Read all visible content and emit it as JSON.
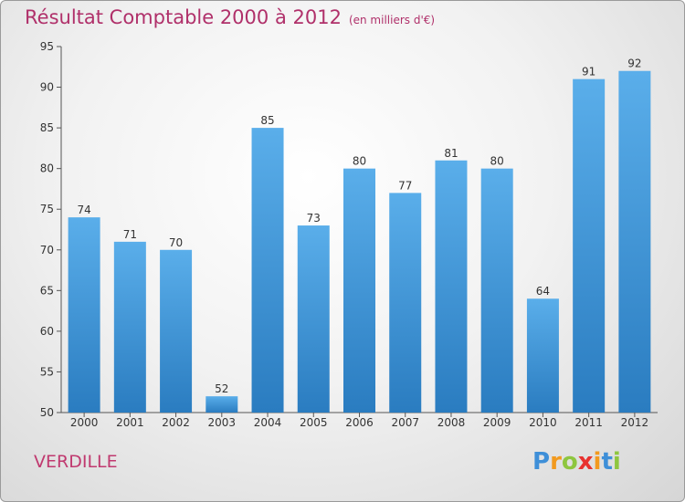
{
  "chart_data": {
    "type": "bar",
    "title": "Résultat Comptable 2000 à 2012",
    "subtitle": "(en milliers d'€)",
    "categories": [
      "2000",
      "2001",
      "2002",
      "2003",
      "2004",
      "2005",
      "2006",
      "2007",
      "2008",
      "2009",
      "2010",
      "2011",
      "2012"
    ],
    "values": [
      74,
      71,
      70,
      52,
      85,
      73,
      80,
      77,
      81,
      80,
      64,
      91,
      92
    ],
    "yticks": [
      50,
      55,
      60,
      65,
      70,
      75,
      80,
      85,
      90,
      95
    ],
    "ylim": [
      50,
      95
    ],
    "grid": false,
    "bar_color": "#3f97dc"
  },
  "place": "VERDILLE",
  "logo": {
    "letters": [
      "P",
      "r",
      "o",
      "x",
      "i",
      "t",
      "i"
    ],
    "colors": [
      "#3e8fd8",
      "#f29a1f",
      "#8ec63f",
      "#e8312f",
      "#f29a1f",
      "#3e8fd8",
      "#8ec63f"
    ]
  }
}
